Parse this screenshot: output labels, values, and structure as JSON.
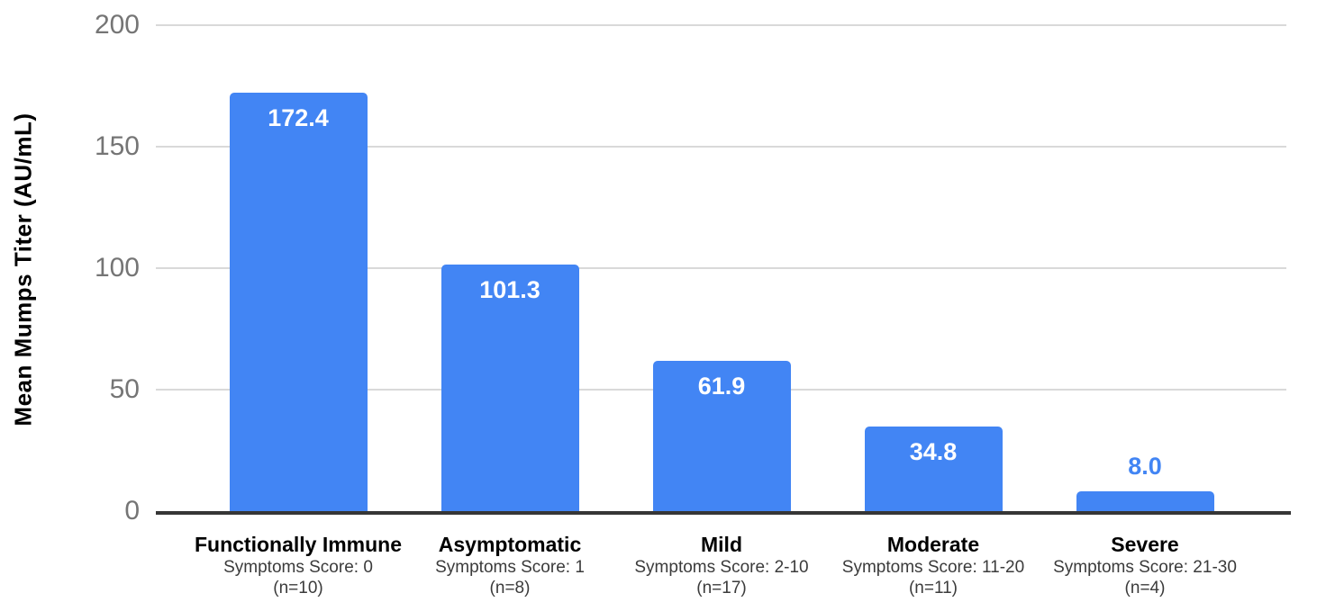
{
  "chart_data": {
    "type": "bar",
    "title": "",
    "ylabel": "Mean Mumps Titer (AU/mL)",
    "xlabel": "",
    "ylim": [
      0,
      200
    ],
    "yticks": [
      0,
      50,
      100,
      150,
      200
    ],
    "grid": true,
    "legend_position": "none",
    "categories": [
      "Functionally Immune",
      "Asymptomatic",
      "Mild",
      "Moderate",
      "Severe"
    ],
    "category_sublabels": [
      [
        "Symptoms Score: 0",
        "(n=10)"
      ],
      [
        "Symptoms Score: 1",
        "(n=8)"
      ],
      [
        "Symptoms Score: 2-10",
        "(n=17)"
      ],
      [
        "Symptoms Score: 11-20",
        "(n=11)"
      ],
      [
        "Symptoms Score: 21-30",
        "(n=4)"
      ]
    ],
    "values": [
      172.4,
      101.3,
      61.9,
      34.8,
      8.0
    ],
    "value_labels": [
      "172.4",
      "101.3",
      "61.9",
      "34.8",
      "8.0"
    ]
  },
  "colors": {
    "bar": "#4285f4",
    "value_label_inside": "#ffffff",
    "value_label_outside": "#4285f4",
    "tick_label": "#757575",
    "gridline": "#d9d9d9",
    "axis_line": "#363636",
    "category_label": "#000000",
    "category_sublabel": "#3b3b3b"
  }
}
